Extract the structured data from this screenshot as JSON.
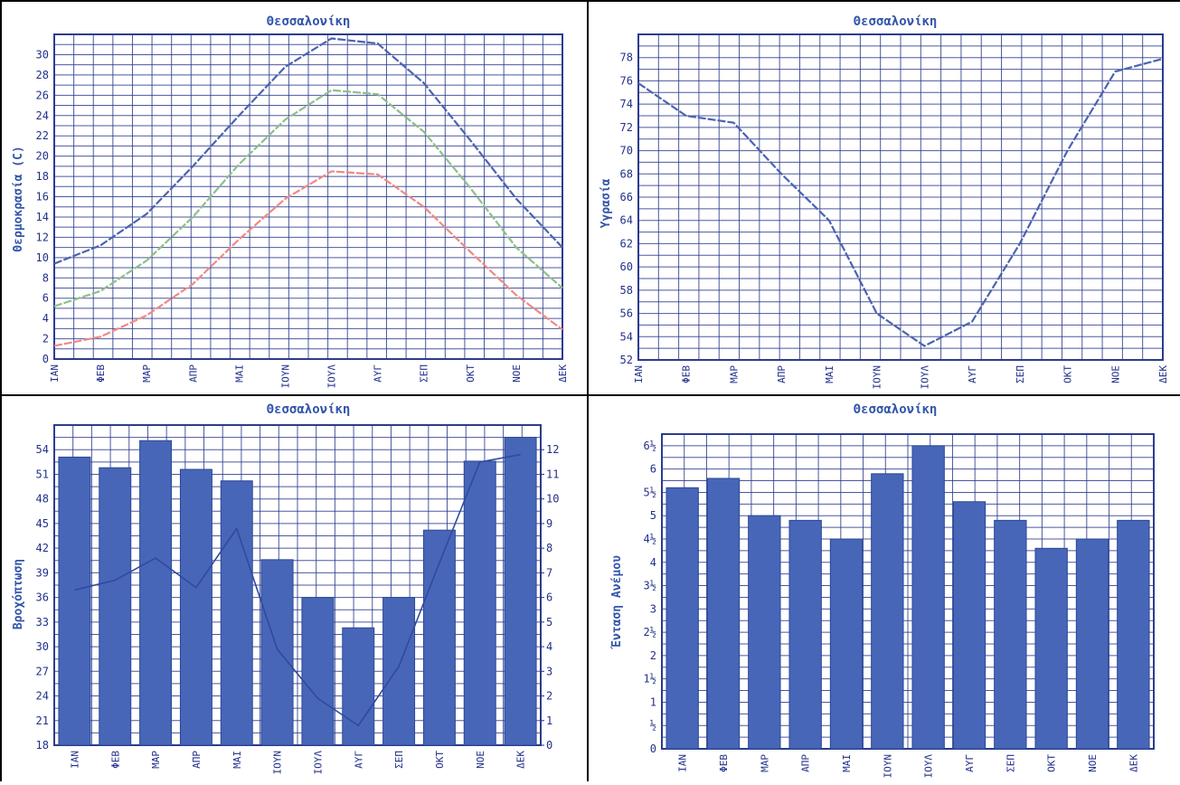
{
  "months": [
    "ΙΑΝ",
    "ΦΕΒ",
    "ΜΑΡ",
    "ΑΠΡ",
    "ΜΑΙ",
    "ΙΟΥΝ",
    "ΙΟΥΛ",
    "ΑΥΓ",
    "ΣΕΠ",
    "ΟΚΤ",
    "ΝΟΕ",
    "ΔΕΚ"
  ],
  "colors": {
    "title": "#3355aa",
    "grid": "#2c3c8c",
    "axis_text": "#23308a",
    "line_blue": "#4c63b0",
    "line_green": "#8fbf8a",
    "line_red": "#ee8a86",
    "bar_fill": "#4766b8",
    "bar_edge": "#2c4796"
  },
  "chart_data": [
    {
      "type": "line",
      "title": "Θεσσαλονίκη",
      "xlabel": "",
      "ylabel": "Θερμοκρασία (C)",
      "categories": [
        "ΙΑΝ",
        "ΦΕΒ",
        "ΜΑΡ",
        "ΑΠΡ",
        "ΜΑΙ",
        "ΙΟΥΝ",
        "ΙΟΥΛ",
        "ΑΥΓ",
        "ΣΕΠ",
        "ΟΚΤ",
        "ΝΟΕ",
        "ΔΕΚ"
      ],
      "yticks": [
        "0",
        "2",
        "4",
        "6",
        "8",
        "10",
        "12",
        "14",
        "16",
        "18",
        "20",
        "22",
        "24",
        "26",
        "28",
        "30"
      ],
      "ylim": [
        0,
        32
      ],
      "grid": true,
      "series": [
        {
          "color": "line_blue",
          "values": [
            9.4,
            11.2,
            14.3,
            19.0,
            24.0,
            28.8,
            31.6,
            31.1,
            27.2,
            21.6,
            15.8,
            11.0
          ]
        },
        {
          "color": "line_green",
          "values": [
            5.2,
            6.7,
            9.7,
            14.0,
            19.2,
            23.6,
            26.5,
            26.1,
            22.4,
            16.9,
            11.0,
            7.0
          ]
        },
        {
          "color": "line_red",
          "values": [
            1.3,
            2.2,
            4.3,
            7.4,
            11.8,
            15.8,
            18.5,
            18.2,
            15.0,
            10.6,
            6.3,
            2.9
          ]
        }
      ]
    },
    {
      "type": "line",
      "title": "Θεσσαλονίκη",
      "xlabel": "",
      "ylabel": "Υγρασία",
      "categories": [
        "ΙΑΝ",
        "ΦΕΒ",
        "ΜΑΡ",
        "ΑΠΡ",
        "ΜΑΙ",
        "ΙΟΥΝ",
        "ΙΟΥΛ",
        "ΑΥΓ",
        "ΣΕΠ",
        "ΟΚΤ",
        "ΝΟΕ",
        "ΔΕΚ"
      ],
      "yticks": [
        "52",
        "54",
        "56",
        "58",
        "60",
        "62",
        "64",
        "66",
        "68",
        "70",
        "72",
        "74",
        "76",
        "78"
      ],
      "ylim": [
        52,
        80
      ],
      "grid": true,
      "series": [
        {
          "color": "line_blue",
          "values": [
            75.8,
            73.0,
            72.4,
            68.0,
            64.0,
            56.0,
            53.2,
            55.3,
            62.0,
            70.0,
            76.8,
            77.9
          ]
        }
      ]
    },
    {
      "type": "bar",
      "title": "Θεσσαλονίκη",
      "xlabel": "",
      "ylabel": "Βροχόπτωση",
      "categories": [
        "ΙΑΝ",
        "ΦΕΒ",
        "ΜΑΡ",
        "ΑΠΡ",
        "ΜΑΙ",
        "ΙΟΥΝ",
        "ΙΟΥΛ",
        "ΑΥΓ",
        "ΣΕΠ",
        "ΟΚΤ",
        "ΝΟΕ",
        "ΔΕΚ"
      ],
      "yticks": [
        "18",
        "21",
        "24",
        "27",
        "30",
        "33",
        "36",
        "39",
        "42",
        "45",
        "48",
        "51",
        "54"
      ],
      "ylim": [
        18,
        57
      ],
      "y2ticks": [
        "0",
        "1",
        "2",
        "3",
        "4",
        "5",
        "6",
        "7",
        "8",
        "9",
        "10",
        "11",
        "12"
      ],
      "y2lim": [
        0,
        13
      ],
      "grid": true,
      "values": [
        53.1,
        51.8,
        55.1,
        51.6,
        50.2,
        40.6,
        36.0,
        32.3,
        36.0,
        44.2,
        52.6,
        55.5
      ],
      "line_values": [
        6.3,
        6.7,
        7.6,
        6.4,
        8.8,
        3.9,
        1.9,
        0.8,
        3.2,
        7.4,
        11.5,
        11.8
      ]
    },
    {
      "type": "bar",
      "title": "Θεσσαλονίκη",
      "xlabel": "",
      "ylabel": "Ένταση Ανέμου",
      "categories": [
        "ΙΑΝ",
        "ΦΕΒ",
        "ΜΑΡ",
        "ΑΠΡ",
        "ΜΑΙ",
        "ΙΟΥΝ",
        "ΙΟΥΛ",
        "ΑΥΓ",
        "ΣΕΠ",
        "ΟΚΤ",
        "ΝΟΕ",
        "ΔΕΚ"
      ],
      "yticks": [
        "0",
        "½",
        "1",
        "1½",
        "2",
        "2½",
        "3",
        "3½",
        "4",
        "4½",
        "5",
        "5½",
        "6",
        "6½"
      ],
      "ylim": [
        0,
        6.75
      ],
      "grid": true,
      "values": [
        5.6,
        5.8,
        5.0,
        4.9,
        4.5,
        5.9,
        6.5,
        5.3,
        4.9,
        4.3,
        4.5,
        4.9
      ]
    }
  ]
}
